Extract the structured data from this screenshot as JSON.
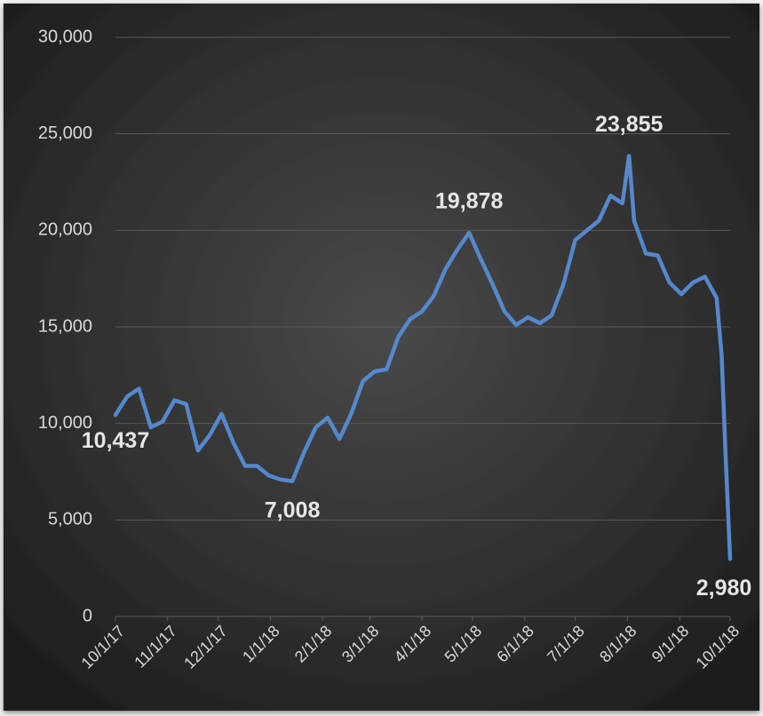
{
  "chart_data": {
    "type": "line",
    "x": [
      "10/1/17",
      "10/8/17",
      "10/15/17",
      "10/22/17",
      "10/29/17",
      "11/5/17",
      "11/12/17",
      "11/19/17",
      "11/26/17",
      "12/3/17",
      "12/10/17",
      "12/17/17",
      "12/24/17",
      "12/31/17",
      "1/7/18",
      "1/14/18",
      "1/21/18",
      "1/28/18",
      "2/4/18",
      "2/11/18",
      "2/18/18",
      "2/25/18",
      "3/4/18",
      "3/11/18",
      "3/18/18",
      "3/25/18",
      "4/1/18",
      "4/8/18",
      "4/15/18",
      "4/22/18",
      "4/29/18",
      "5/6/18",
      "5/13/18",
      "5/20/18",
      "5/27/18",
      "6/3/18",
      "6/10/18",
      "6/17/18",
      "6/24/18",
      "7/1/18",
      "7/8/18",
      "7/15/18",
      "7/22/18",
      "7/29/18",
      "8/2/18",
      "8/5/18",
      "8/12/18",
      "8/19/18",
      "8/26/18",
      "9/2/18",
      "9/9/18",
      "9/16/18",
      "9/23/18",
      "9/26/18",
      "9/28/18",
      "10/1/18"
    ],
    "series": [
      {
        "color": "#5588cc",
        "values": [
          10437,
          11400,
          11800,
          9800,
          10100,
          11200,
          11000,
          8600,
          9400,
          10500,
          9000,
          7800,
          7800,
          7300,
          7100,
          7008,
          8500,
          9800,
          10300,
          9200,
          10500,
          12200,
          12700,
          12800,
          14500,
          15400,
          15800,
          16600,
          18000,
          19000,
          19878,
          18500,
          17200,
          15800,
          15100,
          15500,
          15200,
          15600,
          17200,
          19500,
          20000,
          20500,
          21800,
          21400,
          23855,
          20500,
          18800,
          18700,
          17300,
          16700,
          17300,
          17600,
          16500,
          13500,
          9000,
          2980
        ],
        "value_labels": [
          "10,437",
          null,
          null,
          null,
          null,
          null,
          null,
          null,
          null,
          null,
          null,
          null,
          null,
          null,
          null,
          "7,008",
          null,
          null,
          null,
          null,
          null,
          null,
          null,
          null,
          null,
          null,
          null,
          null,
          null,
          null,
          "19,878",
          null,
          null,
          null,
          null,
          null,
          null,
          null,
          null,
          null,
          null,
          null,
          null,
          null,
          "23,855",
          null,
          null,
          null,
          null,
          null,
          null,
          null,
          null,
          null,
          null,
          "2,980"
        ]
      }
    ],
    "xlim": [
      "10/1/17",
      "10/1/18"
    ],
    "xticks": [
      "10/1/17",
      "11/1/17",
      "12/1/17",
      "1/1/18",
      "2/1/18",
      "3/1/18",
      "4/1/18",
      "5/1/18",
      "6/1/18",
      "7/1/18",
      "8/1/18",
      "9/1/18",
      "10/1/18"
    ],
    "ylim": [
      0,
      30000
    ],
    "yticks": [
      {
        "value": 0,
        "label": "0"
      },
      {
        "value": 5000,
        "label": "5,000"
      },
      {
        "value": 10000,
        "label": "10,000"
      },
      {
        "value": 15000,
        "label": "15,000"
      },
      {
        "value": 20000,
        "label": "20,000"
      },
      {
        "value": 25000,
        "label": "25,000"
      },
      {
        "value": 30000,
        "label": "30,000"
      }
    ],
    "grid": true
  }
}
